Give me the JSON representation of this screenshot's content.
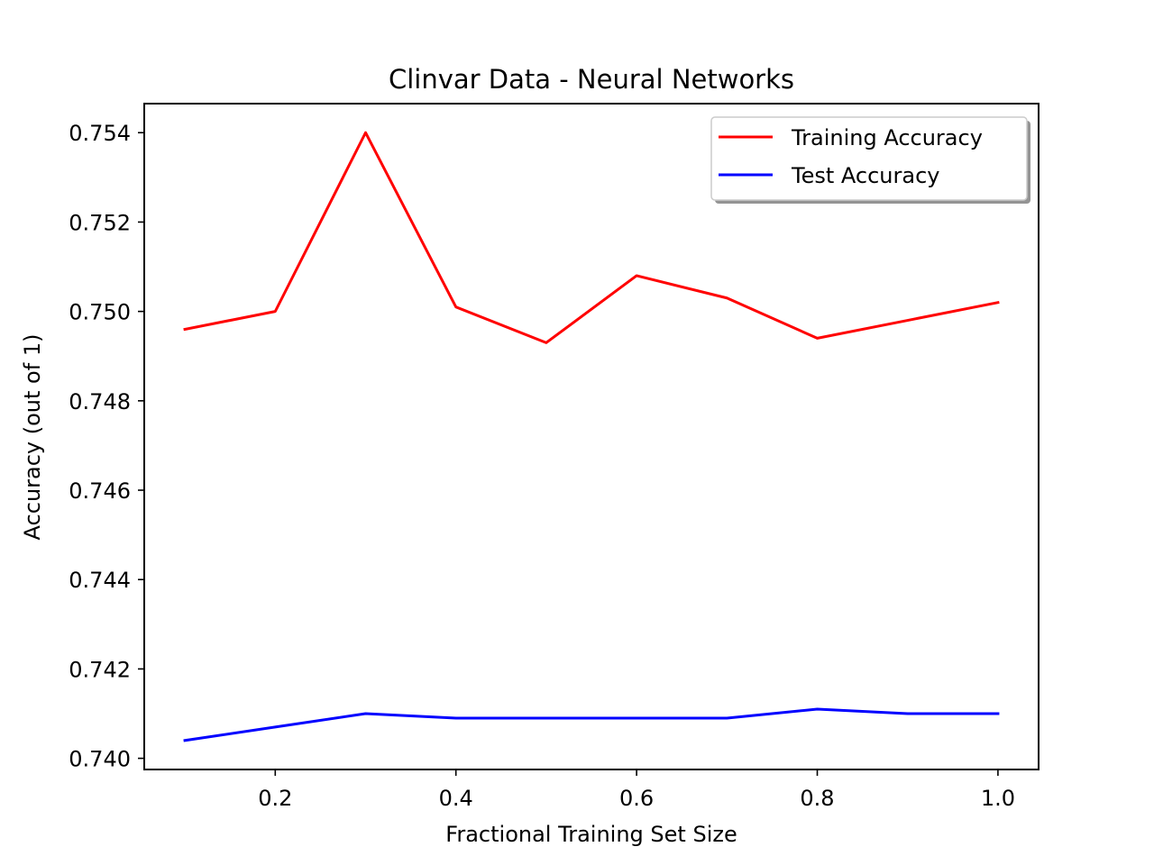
{
  "chart_data": {
    "type": "line",
    "title": "Clinvar Data - Neural Networks",
    "xlabel": "Fractional Training Set Size",
    "ylabel": "Accuracy (out of 1)",
    "xlim": [
      0.055,
      1.045
    ],
    "ylim": [
      0.73975,
      0.75465
    ],
    "x_ticks": [
      0.2,
      0.4,
      0.6,
      0.8,
      1.0
    ],
    "x_tick_labels": [
      "0.2",
      "0.4",
      "0.6",
      "0.8",
      "1.0"
    ],
    "y_ticks": [
      0.74,
      0.742,
      0.744,
      0.746,
      0.748,
      0.75,
      0.752,
      0.754
    ],
    "y_tick_labels": [
      "0.740",
      "0.742",
      "0.744",
      "0.746",
      "0.748",
      "0.750",
      "0.752",
      "0.754"
    ],
    "x": [
      0.1,
      0.2,
      0.3,
      0.4,
      0.5,
      0.6,
      0.7,
      0.8,
      0.9,
      1.0
    ],
    "series": [
      {
        "name": "Training Accuracy",
        "color": "#ff0000",
        "values": [
          0.7496,
          0.75,
          0.754,
          0.7501,
          0.7493,
          0.7508,
          0.7503,
          0.7494,
          0.7498,
          0.7502
        ]
      },
      {
        "name": "Test Accuracy",
        "color": "#0000ff",
        "values": [
          0.7404,
          0.7407,
          0.741,
          0.7409,
          0.7409,
          0.7409,
          0.7409,
          0.7411,
          0.741,
          0.741
        ]
      }
    ],
    "grid": false,
    "legend_position": "top-right"
  }
}
